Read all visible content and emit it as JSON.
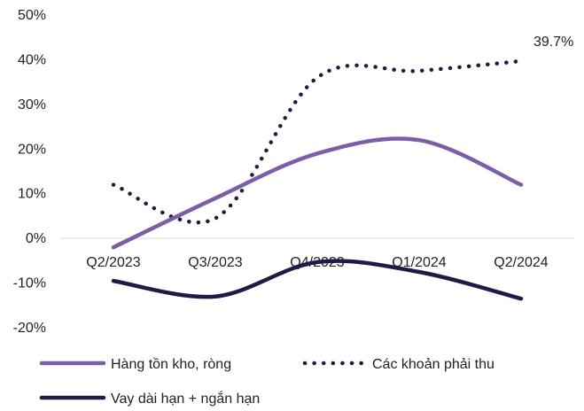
{
  "chart_data": {
    "type": "line",
    "categories": [
      "Q2/2023",
      "Q3/2023",
      "Q4/2023",
      "Q1/2024",
      "Q2/2024"
    ],
    "ylim": [
      -20,
      50
    ],
    "yticks": [
      "50%",
      "40%",
      "30%",
      "20%",
      "10%",
      "0%",
      "-10%",
      "-20%"
    ],
    "ytick_values": [
      50,
      40,
      30,
      20,
      10,
      0,
      -10,
      -20
    ],
    "grid": false,
    "legend_position": "bottom",
    "series": [
      {
        "name": "Hàng tồn kho, ròng",
        "values": [
          -2,
          9,
          19,
          22,
          12
        ],
        "color": "#7B5EA7",
        "style": "solid"
      },
      {
        "name": "Các khoản phải thu",
        "values": [
          12,
          4.5,
          36,
          37.5,
          39.7
        ],
        "color": "#221A45",
        "style": "dotted"
      },
      {
        "name": "Vay dài hạn + ngắn hạn",
        "values": [
          -9.5,
          -13,
          -5.3,
          -7.5,
          -13.5
        ],
        "color": "#221A45",
        "style": "solid"
      }
    ],
    "annotations": [
      {
        "series": 1,
        "index": 4,
        "text": "39.7%"
      }
    ]
  }
}
